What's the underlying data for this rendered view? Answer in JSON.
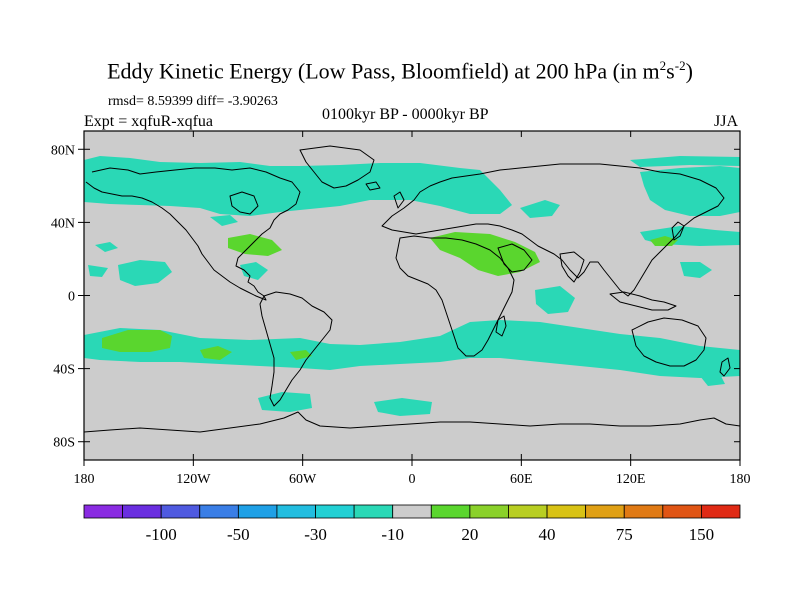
{
  "title": {
    "main": "Eddy Kinetic Energy (Low Pass, Bloomfield) at 200 hPa (in m",
    "exp1": "2",
    "mid": "s",
    "exp2": "-2",
    "end": ")"
  },
  "stats": "rmsd= 8.59399 diff= -3.90263",
  "expt": "Expt = xqfuR-xqfua",
  "period": "0100kyr BP - 0000kyr BP",
  "season": "JJA",
  "lat_labels": [
    "80N",
    "40N",
    "0",
    "40S",
    "80S"
  ],
  "lon_labels": [
    "180",
    "120W",
    "60W",
    "0",
    "60E",
    "120E",
    "180"
  ],
  "colorbar": {
    "colors": [
      "#8a2be2",
      "#6a2ee0",
      "#4f5ae0",
      "#3a7ee6",
      "#1fa0e6",
      "#22bde0",
      "#22d0d4",
      "#2ad8b6",
      "#cccccc",
      "#5ad62e",
      "#8ad12a",
      "#b8ce22",
      "#d8c215",
      "#e0a015",
      "#e07a15",
      "#e05515",
      "#e02a15"
    ],
    "labels": [
      "-100",
      "-50",
      "-30",
      "-10",
      "20",
      "40",
      "75",
      "150"
    ],
    "label_after_box": [
      2,
      4,
      6,
      8,
      10,
      12,
      14,
      16
    ]
  },
  "colors": {
    "background": "#cccccc",
    "cyan_fill": "#2ad8b6",
    "green_fill": "#5ad62e",
    "coast": "#000000"
  }
}
